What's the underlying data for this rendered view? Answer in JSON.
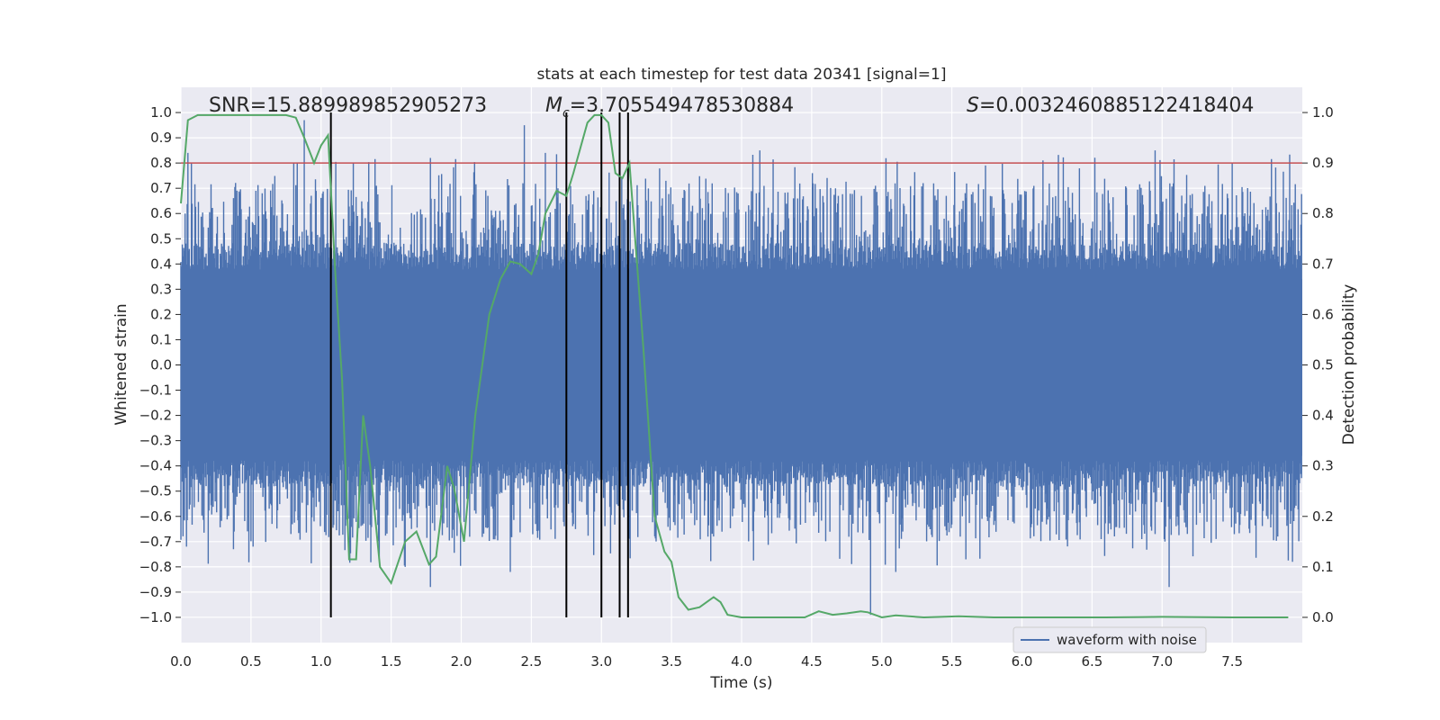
{
  "chart_data": {
    "type": "line",
    "title": "stats at each timestep for test data 20341 [signal=1]",
    "xlabel": "Time (s)",
    "ylabel_left": "Whitened strain",
    "ylabel_right": "Detection probability",
    "xlim": [
      0,
      8
    ],
    "ylim_left": [
      -1.1,
      1.1
    ],
    "ylim_right": [
      -0.05,
      1.05
    ],
    "x_ticks": [
      "0.0",
      "0.5",
      "1.0",
      "1.5",
      "2.0",
      "2.5",
      "3.0",
      "3.5",
      "4.0",
      "4.5",
      "5.0",
      "5.5",
      "6.0",
      "6.5",
      "7.0",
      "7.5"
    ],
    "y_ticks_left": [
      "1.0",
      "0.9",
      "0.8",
      "0.7",
      "0.6",
      "0.5",
      "0.4",
      "0.3",
      "0.2",
      "0.1",
      "0.0",
      "−0.1",
      "−0.2",
      "−0.3",
      "−0.4",
      "−0.5",
      "−0.6",
      "−0.7",
      "−0.8",
      "−0.9",
      "−1.0"
    ],
    "y_ticks_right": [
      "1.0",
      "0.9",
      "0.8",
      "0.7",
      "0.6",
      "0.5",
      "0.4",
      "0.3",
      "0.2",
      "0.1",
      "0.0"
    ],
    "annotations": {
      "snr_label": "SNR=15.889989852905273",
      "mc_prefix": "M",
      "mc_sub": "c",
      "mc_value": "=3.705549478530884",
      "s_prefix": "S",
      "s_value": "=0.0032460885122418404"
    },
    "threshold": {
      "value": 0.9,
      "axis": "right",
      "color": "#c44e52"
    },
    "vertical_markers": [
      1.07,
      2.75,
      3.0,
      3.13,
      3.19
    ],
    "series": [
      {
        "name": "waveform with noise",
        "axis": "left",
        "color": "#4c72b0",
        "core_amplitude": 0.42,
        "spike_peaks": [
          {
            "x": 0.03,
            "y": 0.6
          },
          {
            "x": 0.05,
            "y": 0.84
          },
          {
            "x": 0.04,
            "y": -0.72
          },
          {
            "x": 0.22,
            "y": 0.62
          },
          {
            "x": 0.42,
            "y": 0.68
          },
          {
            "x": 0.58,
            "y": 0.68
          },
          {
            "x": 0.88,
            "y": 0.97
          },
          {
            "x": 0.95,
            "y": -0.62
          },
          {
            "x": 1.6,
            "y": -0.8
          },
          {
            "x": 1.78,
            "y": 0.82
          },
          {
            "x": 1.78,
            "y": -0.88
          },
          {
            "x": 2.35,
            "y": -0.82
          },
          {
            "x": 2.45,
            "y": 0.95
          },
          {
            "x": 2.6,
            "y": 0.84
          },
          {
            "x": 4.13,
            "y": 0.85
          },
          {
            "x": 4.92,
            "y": -0.99
          },
          {
            "x": 5.1,
            "y": -0.82
          },
          {
            "x": 5.6,
            "y": -0.77
          },
          {
            "x": 6.15,
            "y": 0.81
          },
          {
            "x": 6.95,
            "y": 0.85
          },
          {
            "x": 7.05,
            "y": -0.88
          },
          {
            "x": 7.95,
            "y": 0.62
          },
          {
            "x": 7.93,
            "y": -0.78
          },
          {
            "x": 7.5,
            "y": 0.8
          }
        ]
      },
      {
        "name": "detection probability",
        "axis": "right",
        "color": "#55a868",
        "x": [
          0.0,
          0.05,
          0.12,
          0.3,
          0.55,
          0.75,
          0.82,
          0.88,
          0.95,
          1.0,
          1.05,
          1.1,
          1.15,
          1.2,
          1.25,
          1.3,
          1.35,
          1.42,
          1.5,
          1.6,
          1.68,
          1.77,
          1.82,
          1.9,
          1.95,
          2.02,
          2.1,
          2.2,
          2.28,
          2.35,
          2.42,
          2.5,
          2.55,
          2.6,
          2.68,
          2.75,
          2.8,
          2.85,
          2.9,
          2.95,
          3.0,
          3.05,
          3.1,
          3.15,
          3.2,
          3.3,
          3.38,
          3.45,
          3.5,
          3.55,
          3.62,
          3.7,
          3.75,
          3.8,
          3.85,
          3.9,
          4.0,
          4.2,
          4.45,
          4.55,
          4.65,
          4.75,
          4.85,
          4.9,
          5.0,
          5.1,
          5.3,
          5.55,
          5.8,
          6.2,
          6.6,
          7.0,
          7.5,
          7.9
        ],
        "y": [
          0.82,
          0.985,
          0.995,
          0.995,
          0.995,
          0.995,
          0.99,
          0.95,
          0.9,
          0.935,
          0.955,
          0.69,
          0.47,
          0.115,
          0.115,
          0.4,
          0.3,
          0.1,
          0.068,
          0.15,
          0.17,
          0.105,
          0.12,
          0.3,
          0.255,
          0.15,
          0.4,
          0.6,
          0.67,
          0.705,
          0.7,
          0.68,
          0.72,
          0.8,
          0.845,
          0.835,
          0.88,
          0.93,
          0.98,
          0.995,
          0.995,
          0.98,
          0.88,
          0.87,
          0.9,
          0.53,
          0.2,
          0.13,
          0.11,
          0.04,
          0.015,
          0.02,
          0.03,
          0.04,
          0.03,
          0.005,
          0.0,
          0.0,
          0.0,
          0.012,
          0.005,
          0.008,
          0.012,
          0.01,
          0.0,
          0.004,
          0.0,
          0.002,
          0.0,
          0.0,
          0.0,
          0.001,
          0.0,
          0.0
        ]
      }
    ]
  },
  "legend": {
    "label": "waveform with noise"
  }
}
